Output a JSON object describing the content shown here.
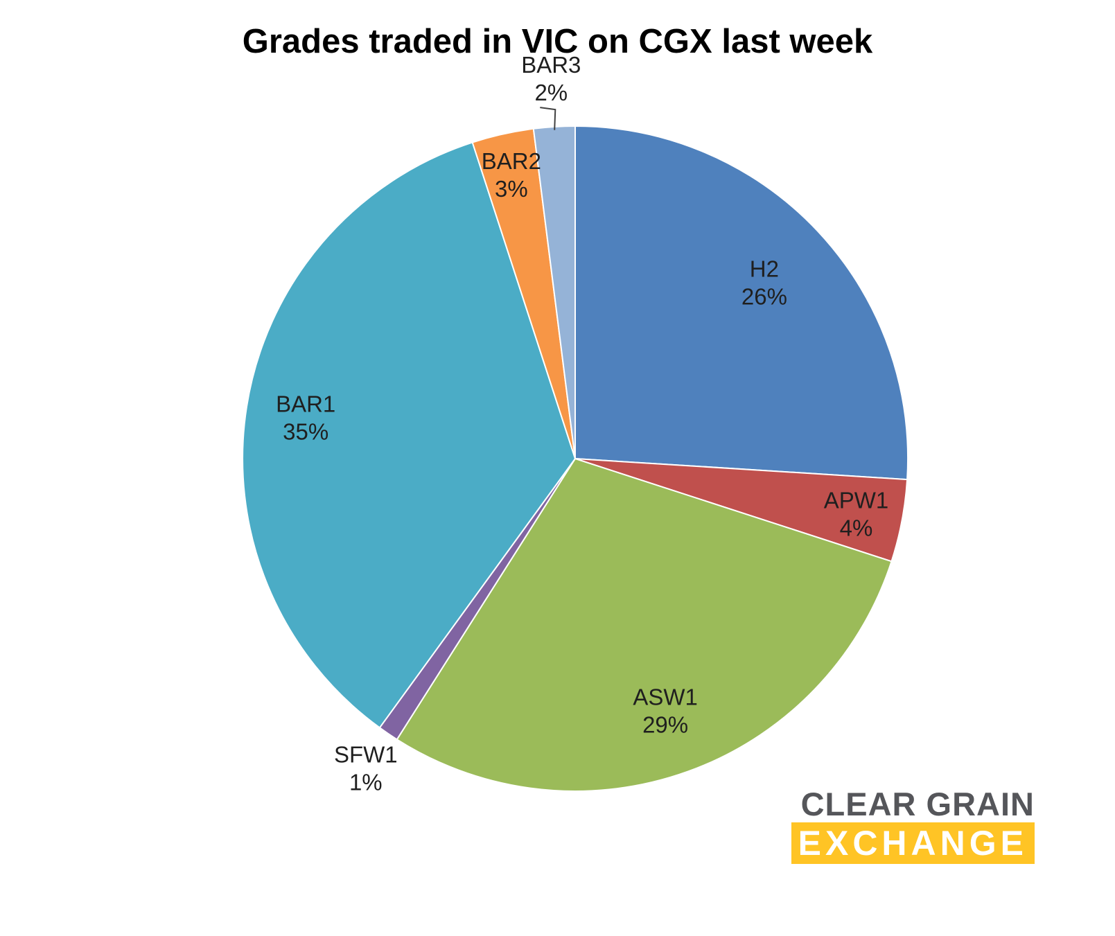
{
  "chart_data": {
    "type": "pie",
    "title": "Grades traded in VIC on CGX last week",
    "categories": [
      "H2",
      "APW1",
      "ASW1",
      "SFW1",
      "BAR1",
      "BAR2",
      "BAR3"
    ],
    "values": [
      26,
      4,
      29,
      1,
      35,
      3,
      2
    ],
    "unit": "%",
    "colors": [
      "#4F81BD",
      "#C0504D",
      "#9BBB59",
      "#8064A2",
      "#4BACC6",
      "#F79646",
      "#95B3D7"
    ],
    "start_angle_deg": 0,
    "direction": "clockwise",
    "legend": "none",
    "label_style": "category-and-percent",
    "label_layout": [
      {
        "placement": "inside",
        "r": 0.78,
        "leader": false
      },
      {
        "placement": "inside",
        "r": 0.86,
        "leader": false
      },
      {
        "placement": "inside",
        "r": 0.8,
        "leader": false
      },
      {
        "placement": "outside",
        "r": 1.12,
        "leader": false
      },
      {
        "placement": "inside",
        "r": 0.82,
        "leader": false
      },
      {
        "placement": "inside",
        "r": 0.88,
        "leader": false
      },
      {
        "placement": "outside",
        "r": 1.15,
        "leader": true
      }
    ]
  },
  "logo": {
    "line1": "CLEAR GRAIN",
    "line2": "EXCHANGE",
    "accent_color": "#FFC425",
    "gray_color": "#55565A"
  }
}
